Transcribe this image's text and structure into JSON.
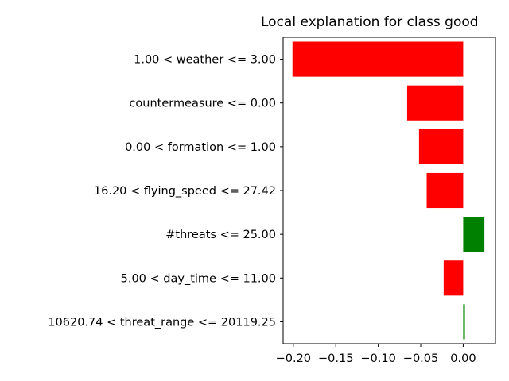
{
  "chart_data": {
    "type": "bar",
    "orientation": "horizontal",
    "title": "Local explanation for class good",
    "categories": [
      "1.00 < weather <= 3.00",
      "countermeasure <= 0.00",
      "0.00 < formation <= 1.00",
      "16.20 < flying_speed <= 27.42",
      "#threats <= 25.00",
      "5.00 < day_time <= 11.00",
      "10620.74 < threat_range <= 20119.25"
    ],
    "values": [
      -0.201,
      -0.066,
      -0.052,
      -0.043,
      0.025,
      -0.023,
      0.002
    ],
    "xlim": [
      -0.212,
      0.038
    ],
    "xticks": [
      -0.2,
      -0.15,
      -0.1,
      -0.05,
      0.0
    ],
    "xtick_labels": [
      "−0.20",
      "−0.15",
      "−0.10",
      "−0.05",
      "0.00"
    ],
    "colors": {
      "negative": "#ff0000",
      "positive": "#008000"
    },
    "xlabel": "",
    "ylabel": "",
    "grid": false,
    "legend": "none"
  }
}
